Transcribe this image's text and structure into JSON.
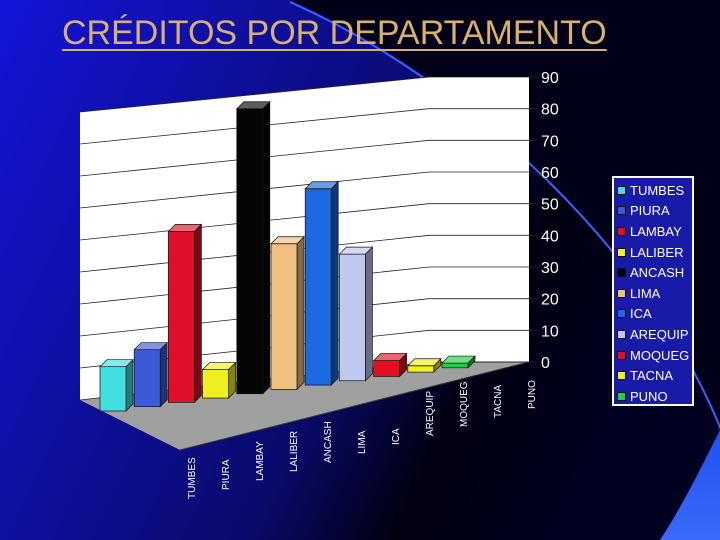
{
  "slide": {
    "title": "CRÉDITOS POR DEPARTAMENTO",
    "background_colors": [
      "#1414d8",
      "#0a0a6a",
      "#000010",
      "#2a3af0"
    ]
  },
  "chart_data": {
    "type": "bar",
    "categories": [
      "TUMBES",
      "PIURA",
      "LAMBAY",
      "LALIBER",
      "ANCASH",
      "LIMA",
      "ICA",
      "AREQUIP",
      "MOQUEG",
      "TACNA",
      "PUNO"
    ],
    "values": [
      14,
      18,
      54,
      9,
      90,
      46,
      62,
      40,
      5,
      2,
      1.5
    ],
    "colors": [
      "#40e0e0",
      "#3a5ad6",
      "#e0102a",
      "#f0f020",
      "#050505",
      "#f0c080",
      "#1a6ae0",
      "#c0c8f0",
      "#e01020",
      "#f0f020",
      "#20d040"
    ],
    "ylim": [
      0,
      90
    ],
    "yticks": [
      "0",
      "10",
      "20",
      "30",
      "40",
      "50",
      "60",
      "70",
      "80",
      "90"
    ],
    "grid": true,
    "legend_position": "right",
    "title": "",
    "xlabel": "",
    "ylabel": ""
  }
}
